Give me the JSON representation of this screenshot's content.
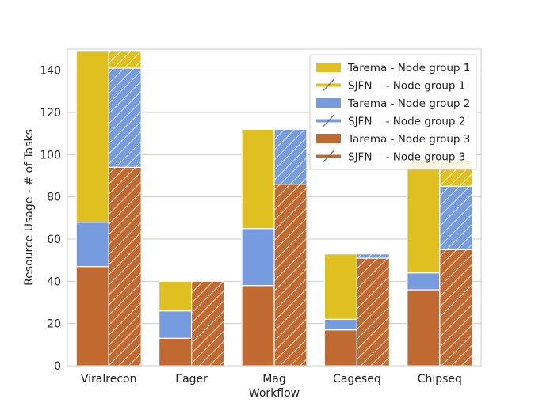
{
  "chart_data": {
    "type": "bar",
    "stacked": true,
    "grouped": true,
    "xlabel": "Workflow",
    "ylabel": "Resource Usage - # of Tasks",
    "ylim": [
      0,
      150
    ],
    "yticks": [
      0,
      20,
      40,
      60,
      80,
      100,
      120,
      140
    ],
    "grid": "horizontal",
    "legend_position": "top-right",
    "categories": [
      "Viralrecon",
      "Eager",
      "Mag",
      "Cageseq",
      "Chipseq"
    ],
    "methods": [
      {
        "name": "Tarema",
        "hatched": false
      },
      {
        "name": "SJFN",
        "hatched": true
      }
    ],
    "node_groups": [
      {
        "name": "Node group 1",
        "color": "#dfc020"
      },
      {
        "name": "Node group 2",
        "color": "#779bdf"
      },
      {
        "name": "Node group 3",
        "color": "#c06a32"
      }
    ],
    "series": [
      {
        "name": "Tarema - Node group 3",
        "method": "Tarema",
        "group": 3,
        "values": [
          47,
          13,
          38,
          17,
          36
        ]
      },
      {
        "name": "Tarema - Node group 2",
        "method": "Tarema",
        "group": 2,
        "values": [
          21,
          13,
          27,
          5,
          8
        ]
      },
      {
        "name": "Tarema - Node group 1",
        "method": "Tarema",
        "group": 1,
        "values": [
          81,
          14,
          47,
          31,
          53
        ]
      },
      {
        "name": "SJFN - Node group 3",
        "method": "SJFN",
        "group": 3,
        "values": [
          94,
          40,
          86,
          51,
          55
        ]
      },
      {
        "name": "SJFN - Node group 2",
        "method": "SJFN",
        "group": 2,
        "values": [
          47,
          0,
          26,
          2,
          30
        ]
      },
      {
        "name": "SJFN - Node group 1",
        "method": "SJFN",
        "group": 1,
        "values": [
          8,
          0,
          0,
          0,
          12
        ]
      }
    ],
    "legend": [
      {
        "label": "Tarema - Node group 1",
        "group": 1,
        "method": "Tarema"
      },
      {
        "label": "SJFN    - Node group 1",
        "group": 1,
        "method": "SJFN"
      },
      {
        "label": "Tarema - Node group 2",
        "group": 2,
        "method": "Tarema"
      },
      {
        "label": "SJFN    - Node group 2",
        "group": 2,
        "method": "SJFN"
      },
      {
        "label": "Tarema - Node group 3",
        "group": 3,
        "method": "Tarema"
      },
      {
        "label": "SJFN    - Node group 3",
        "group": 3,
        "method": "SJFN"
      }
    ]
  }
}
